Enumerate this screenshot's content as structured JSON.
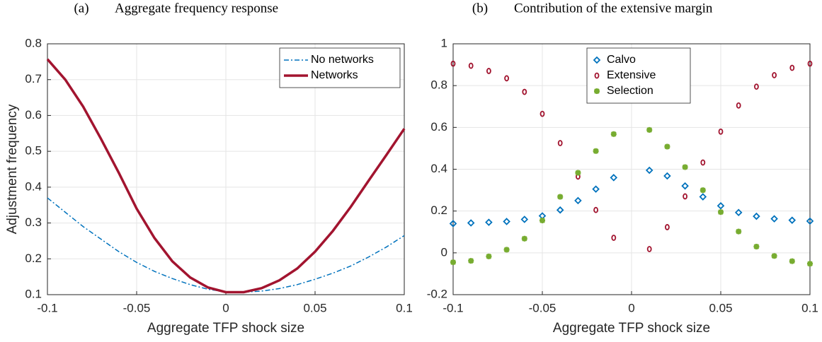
{
  "chart_data": [
    {
      "type": "line",
      "label": "(a)",
      "title": "Aggregate frequency response",
      "xlabel": "Aggregate TFP shock size",
      "ylabel": "Adjustment frequency",
      "x": [
        -0.1,
        -0.09,
        -0.08,
        -0.07,
        -0.06,
        -0.05,
        -0.04,
        -0.03,
        -0.02,
        -0.01,
        0,
        0.01,
        0.02,
        0.03,
        0.04,
        0.05,
        0.06,
        0.07,
        0.08,
        0.09,
        0.1
      ],
      "series": [
        {
          "name": "No networks",
          "color": "#0072bd",
          "linestyle": "dashdot",
          "values": [
            0.37,
            0.33,
            0.29,
            0.255,
            0.22,
            0.19,
            0.165,
            0.145,
            0.128,
            0.115,
            0.108,
            0.107,
            0.11,
            0.117,
            0.128,
            0.143,
            0.16,
            0.18,
            0.205,
            0.233,
            0.265
          ]
        },
        {
          "name": "Networks",
          "color": "#a2142f",
          "linestyle": "solid",
          "values": [
            0.757,
            0.7,
            0.625,
            0.535,
            0.44,
            0.34,
            0.258,
            0.193,
            0.148,
            0.12,
            0.107,
            0.107,
            0.118,
            0.14,
            0.173,
            0.22,
            0.278,
            0.345,
            0.418,
            0.49,
            0.563
          ]
        }
      ],
      "xlim": [
        -0.1,
        0.1
      ],
      "xticks": [
        -0.1,
        -0.05,
        0,
        0.05,
        0.1
      ],
      "ylim": [
        0.1,
        0.8
      ],
      "yticks": [
        0.1,
        0.2,
        0.3,
        0.4,
        0.5,
        0.6,
        0.7,
        0.8
      ],
      "grid": true,
      "legend": "northeast"
    },
    {
      "type": "scatter",
      "label": "(b)",
      "title": "Contribution of the extensive margin",
      "xlabel": "Aggregate TFP shock size",
      "x": [
        -0.1,
        -0.09,
        -0.08,
        -0.07,
        -0.06,
        -0.05,
        -0.04,
        -0.03,
        -0.02,
        -0.01,
        0.01,
        0.02,
        0.03,
        0.04,
        0.05,
        0.06,
        0.07,
        0.08,
        0.09,
        0.1
      ],
      "series": [
        {
          "name": "Calvo",
          "color": "#0072bd",
          "marker": "diamond",
          "values": [
            0.14,
            0.143,
            0.146,
            0.15,
            0.16,
            0.177,
            0.205,
            0.25,
            0.305,
            0.36,
            0.395,
            0.368,
            0.32,
            0.268,
            0.225,
            0.193,
            0.175,
            0.163,
            0.156,
            0.152
          ]
        },
        {
          "name": "Extensive",
          "color": "#a2142f",
          "marker": "circle",
          "values": [
            0.905,
            0.895,
            0.87,
            0.835,
            0.77,
            0.665,
            0.525,
            0.365,
            0.205,
            0.072,
            0.018,
            0.123,
            0.27,
            0.432,
            0.58,
            0.705,
            0.795,
            0.85,
            0.885,
            0.905
          ]
        },
        {
          "name": "Selection",
          "color": "#77ac30",
          "marker": "star",
          "values": [
            -0.045,
            -0.038,
            -0.017,
            0.015,
            0.068,
            0.155,
            0.268,
            0.383,
            0.487,
            0.568,
            0.588,
            0.508,
            0.41,
            0.3,
            0.195,
            0.102,
            0.03,
            -0.015,
            -0.04,
            -0.052
          ]
        }
      ],
      "xlim": [
        -0.1,
        0.1
      ],
      "xticks": [
        -0.1,
        -0.05,
        0,
        0.05,
        0.1
      ],
      "ylim": [
        -0.2,
        1
      ],
      "yticks": [
        -0.2,
        0,
        0.2,
        0.4,
        0.6,
        0.8,
        1
      ],
      "grid": true,
      "legend": "north"
    }
  ]
}
